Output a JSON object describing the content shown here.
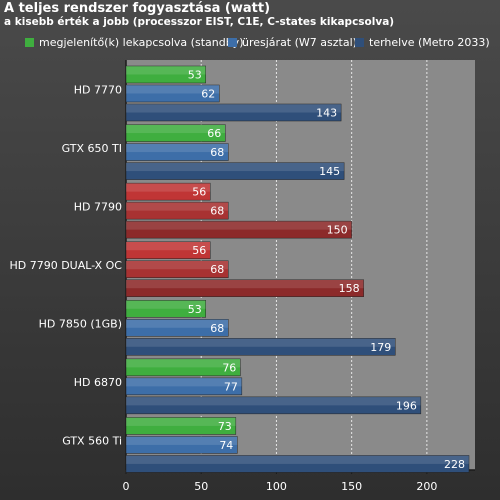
{
  "chart_data": {
    "type": "bar",
    "orientation": "horizontal",
    "title": "A teljes rendszer fogyasztása (watt)",
    "subtitle": "a kisebb érték a jobb (processzor EIST, C1E, C-states kikapcsolva)",
    "categories": [
      "HD 7770",
      "GTX 650 TI",
      "HD 7790",
      "HD 7790 DUAL-X OC",
      "HD 7850 (1GB)",
      "HD 6870",
      "GTX 560 Ti"
    ],
    "series": [
      {
        "name": "megjelenítő(k) lekapcsolva (standby)",
        "values": [
          53,
          66,
          56,
          56,
          53,
          76,
          73
        ]
      },
      {
        "name": "üresjárat (W7 asztal)",
        "values": [
          62,
          68,
          68,
          68,
          68,
          77,
          74
        ]
      },
      {
        "name": "terhelve (Metro 2033)",
        "values": [
          143,
          145,
          150,
          158,
          179,
          196,
          228
        ]
      }
    ],
    "xlim": [
      0,
      232
    ],
    "xticks": [
      0,
      50,
      100,
      150,
      200
    ],
    "grid": true,
    "legend_position": "top",
    "colors": {
      "series_default": [
        "#3fae3f",
        "#3d6ea8",
        "#2f4f7a"
      ],
      "highlight_rows": [
        2,
        3
      ],
      "series_highlight": [
        "#c03535",
        "#a83232",
        "#8c2a2a"
      ],
      "legend_swatches": [
        "#3fae3f",
        "#3d6ea8",
        "#2f4f7a"
      ]
    }
  }
}
